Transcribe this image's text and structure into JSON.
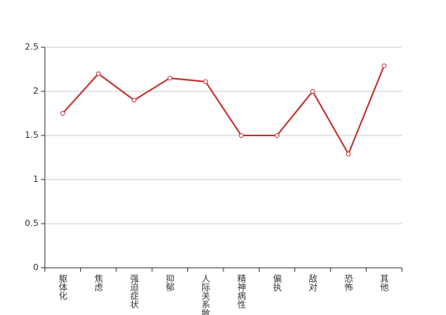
{
  "chart_data": {
    "type": "line",
    "categories": [
      "躯体化",
      "焦虑",
      "强迫症状",
      "抑郁",
      "人际关系敏感",
      "精神病性",
      "偏执",
      "敌对",
      "恐怖",
      "其他"
    ],
    "series": [
      {
        "color": "#c23531",
        "values": [
          1.75,
          2.2,
          1.9,
          2.15,
          2.11,
          1.5,
          1.5,
          2.0,
          1.29,
          2.29
        ]
      }
    ],
    "ylim": [
      0,
      2.5
    ],
    "yticks": [
      0,
      0.5,
      1,
      1.5,
      2,
      2.5
    ],
    "grid": true
  }
}
